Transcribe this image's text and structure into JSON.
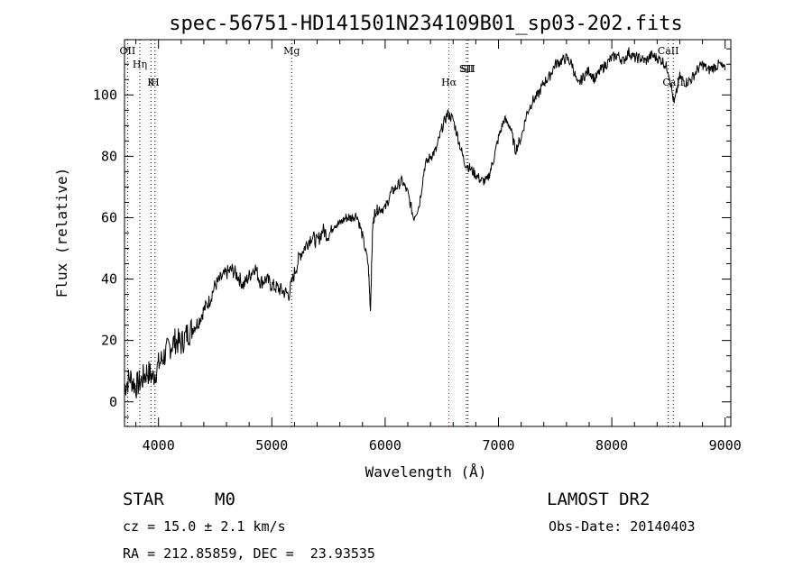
{
  "chart_data": {
    "type": "line",
    "title": "spec-56751-HD141501N234109B01_sp03-202.fits",
    "xlabel": "Wavelength (Å)",
    "ylabel": "Flux (relative)",
    "xlim": [
      3700,
      9050
    ],
    "ylim": [
      -8,
      118
    ],
    "x_ticks": [
      4000,
      5000,
      6000,
      7000,
      8000,
      9000
    ],
    "y_ticks": [
      0,
      20,
      40,
      60,
      80,
      100
    ],
    "grid": false,
    "series": [
      {
        "x": [
          3700,
          3750,
          3800,
          3850,
          3900,
          3950,
          4000,
          4050,
          4100,
          4150,
          4200,
          4250,
          4300,
          4350,
          4400,
          4450,
          4500,
          4550,
          4600,
          4650,
          4700,
          4750,
          4800,
          4850,
          4900,
          4950,
          5000,
          5050,
          5100,
          5150,
          5200,
          5250,
          5300,
          5350,
          5400,
          5450,
          5500,
          5550,
          5600,
          5650,
          5700,
          5750,
          5800,
          5850,
          5870,
          5890,
          5910,
          5950,
          6000,
          6050,
          6100,
          6150,
          6200,
          6250,
          6300,
          6350,
          6400,
          6450,
          6500,
          6550,
          6600,
          6650,
          6700,
          6750,
          6800,
          6850,
          6900,
          6950,
          7000,
          7050,
          7100,
          7150,
          7200,
          7250,
          7300,
          7350,
          7400,
          7450,
          7500,
          7550,
          7600,
          7650,
          7700,
          7750,
          7800,
          7850,
          7900,
          7950,
          8000,
          8050,
          8100,
          8150,
          8200,
          8250,
          8300,
          8350,
          8400,
          8450,
          8500,
          8550,
          8600,
          8650,
          8700,
          8750,
          8800,
          8850,
          8900,
          8950,
          9000
        ],
        "y": [
          5,
          8,
          5,
          7,
          10,
          8,
          12,
          15,
          18,
          20,
          19,
          22,
          24,
          26,
          30,
          33,
          38,
          40,
          42,
          43,
          41,
          38,
          41,
          44,
          39,
          40,
          38,
          37,
          36,
          35,
          42,
          48,
          51,
          54,
          52,
          56,
          54,
          58,
          58,
          60,
          60,
          61,
          54,
          45,
          30,
          57,
          62,
          63,
          63,
          68,
          70,
          72,
          68,
          60,
          64,
          77,
          80,
          82,
          89,
          94,
          92,
          85,
          78,
          76,
          74,
          72,
          72,
          78,
          86,
          92,
          90,
          82,
          86,
          94,
          98,
          100,
          104,
          106,
          110,
          111,
          112,
          110,
          103,
          106,
          108,
          105,
          108,
          110,
          112,
          113,
          111,
          114,
          112,
          112,
          111,
          113,
          112,
          111,
          108,
          97,
          106,
          104,
          105,
          108,
          110,
          108,
          109,
          110,
          108
        ]
      }
    ],
    "line_markers": [
      {
        "label": "OII",
        "x": 3727
      },
      {
        "label": "Hη",
        "x": 3835
      },
      {
        "label": "K",
        "x": 3934
      },
      {
        "label": "H",
        "x": 3969
      },
      {
        "label": "Mg",
        "x": 5175
      },
      {
        "label": "Hα",
        "x": 6563
      },
      {
        "label": "SII",
        "x": 6717
      },
      {
        "label": "SII",
        "x": 6731
      },
      {
        "label": "CaII",
        "x": 8498
      },
      {
        "label": "CaII",
        "x": 8542
      }
    ]
  },
  "info": {
    "class_label": "STAR",
    "subclass": "M0",
    "survey": "LAMOST DR2",
    "cz": "cz = 15.0 ± 2.1 km/s",
    "obs_date": "Obs-Date: 20140403",
    "radec": "RA = 212.85859, DEC =  23.93535"
  },
  "colors": {
    "spectrum": "#000000",
    "marker_dotted": "#000000",
    "halpha_marker": "#cc0000"
  }
}
